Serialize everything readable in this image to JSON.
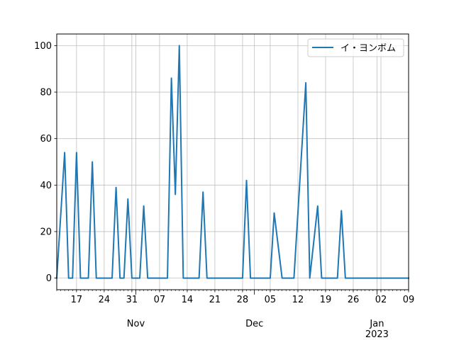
{
  "chart_data": {
    "type": "line",
    "title": "",
    "xlabel": "",
    "ylabel": "",
    "grid": true,
    "legend_position": "upper-right",
    "series": [
      {
        "name": "イ・ヨンボム",
        "color": "#1f77b4",
        "x": [
          "2022-10-12",
          "2022-10-14",
          "2022-10-15",
          "2022-10-16",
          "2022-10-17",
          "2022-10-18",
          "2022-10-19",
          "2022-10-20",
          "2022-10-21",
          "2022-10-22",
          "2022-10-23",
          "2022-10-24",
          "2022-10-26",
          "2022-10-27",
          "2022-10-28",
          "2022-10-29",
          "2022-10-30",
          "2022-10-31",
          "2022-11-01",
          "2022-11-02",
          "2022-11-03",
          "2022-11-04",
          "2022-11-05",
          "2022-11-07",
          "2022-11-09",
          "2022-11-10",
          "2022-11-11",
          "2022-11-12",
          "2022-11-13",
          "2022-11-14",
          "2022-11-15",
          "2022-11-17",
          "2022-11-18",
          "2022-11-19",
          "2022-11-20",
          "2022-11-22",
          "2022-11-24",
          "2022-11-27",
          "2022-11-28",
          "2022-11-29",
          "2022-11-30",
          "2022-12-02",
          "2022-12-04",
          "2022-12-05",
          "2022-12-06",
          "2022-12-08",
          "2022-12-10",
          "2022-12-11",
          "2022-12-14",
          "2022-12-15",
          "2022-12-17",
          "2022-12-18",
          "2022-12-20",
          "2022-12-22",
          "2022-12-23",
          "2022-12-24",
          "2022-12-25",
          "2022-12-27",
          "2023-01-01",
          "2023-01-09"
        ],
        "values": [
          0,
          54,
          0,
          0,
          54,
          0,
          0,
          0,
          50,
          0,
          0,
          0,
          0,
          39,
          0,
          0,
          34,
          0,
          0,
          0,
          31,
          0,
          0,
          0,
          0,
          86,
          36,
          100,
          0,
          0,
          0,
          0,
          37,
          0,
          0,
          0,
          0,
          0,
          0,
          42,
          0,
          0,
          0,
          0,
          28,
          0,
          0,
          0,
          84,
          0,
          31,
          0,
          0,
          0,
          29,
          0,
          0,
          0,
          0,
          0
        ]
      }
    ],
    "xlim": [
      "2022-10-12",
      "2023-01-09"
    ],
    "ylim": [
      -5,
      105
    ],
    "y_ticks": [
      0,
      20,
      40,
      60,
      80,
      100
    ],
    "x_ticks": [
      {
        "date": "2022-10-17",
        "label": "17"
      },
      {
        "date": "2022-10-24",
        "label": "24"
      },
      {
        "date": "2022-10-31",
        "label": "31"
      },
      {
        "date": "2022-11-07",
        "label": "07"
      },
      {
        "date": "2022-11-14",
        "label": "14"
      },
      {
        "date": "2022-11-21",
        "label": "21"
      },
      {
        "date": "2022-11-28",
        "label": "28"
      },
      {
        "date": "2022-12-05",
        "label": "05"
      },
      {
        "date": "2022-12-12",
        "label": "12"
      },
      {
        "date": "2022-12-19",
        "label": "19"
      },
      {
        "date": "2022-12-26",
        "label": "26"
      },
      {
        "date": "2023-01-02",
        "label": "02"
      },
      {
        "date": "2023-01-09",
        "label": "09"
      }
    ],
    "month_labels": [
      {
        "date": "2022-11-01",
        "label": "Nov"
      },
      {
        "date": "2022-12-01",
        "label": "Dec"
      },
      {
        "date": "2023-01-01",
        "label": "Jan\n2023"
      }
    ]
  }
}
